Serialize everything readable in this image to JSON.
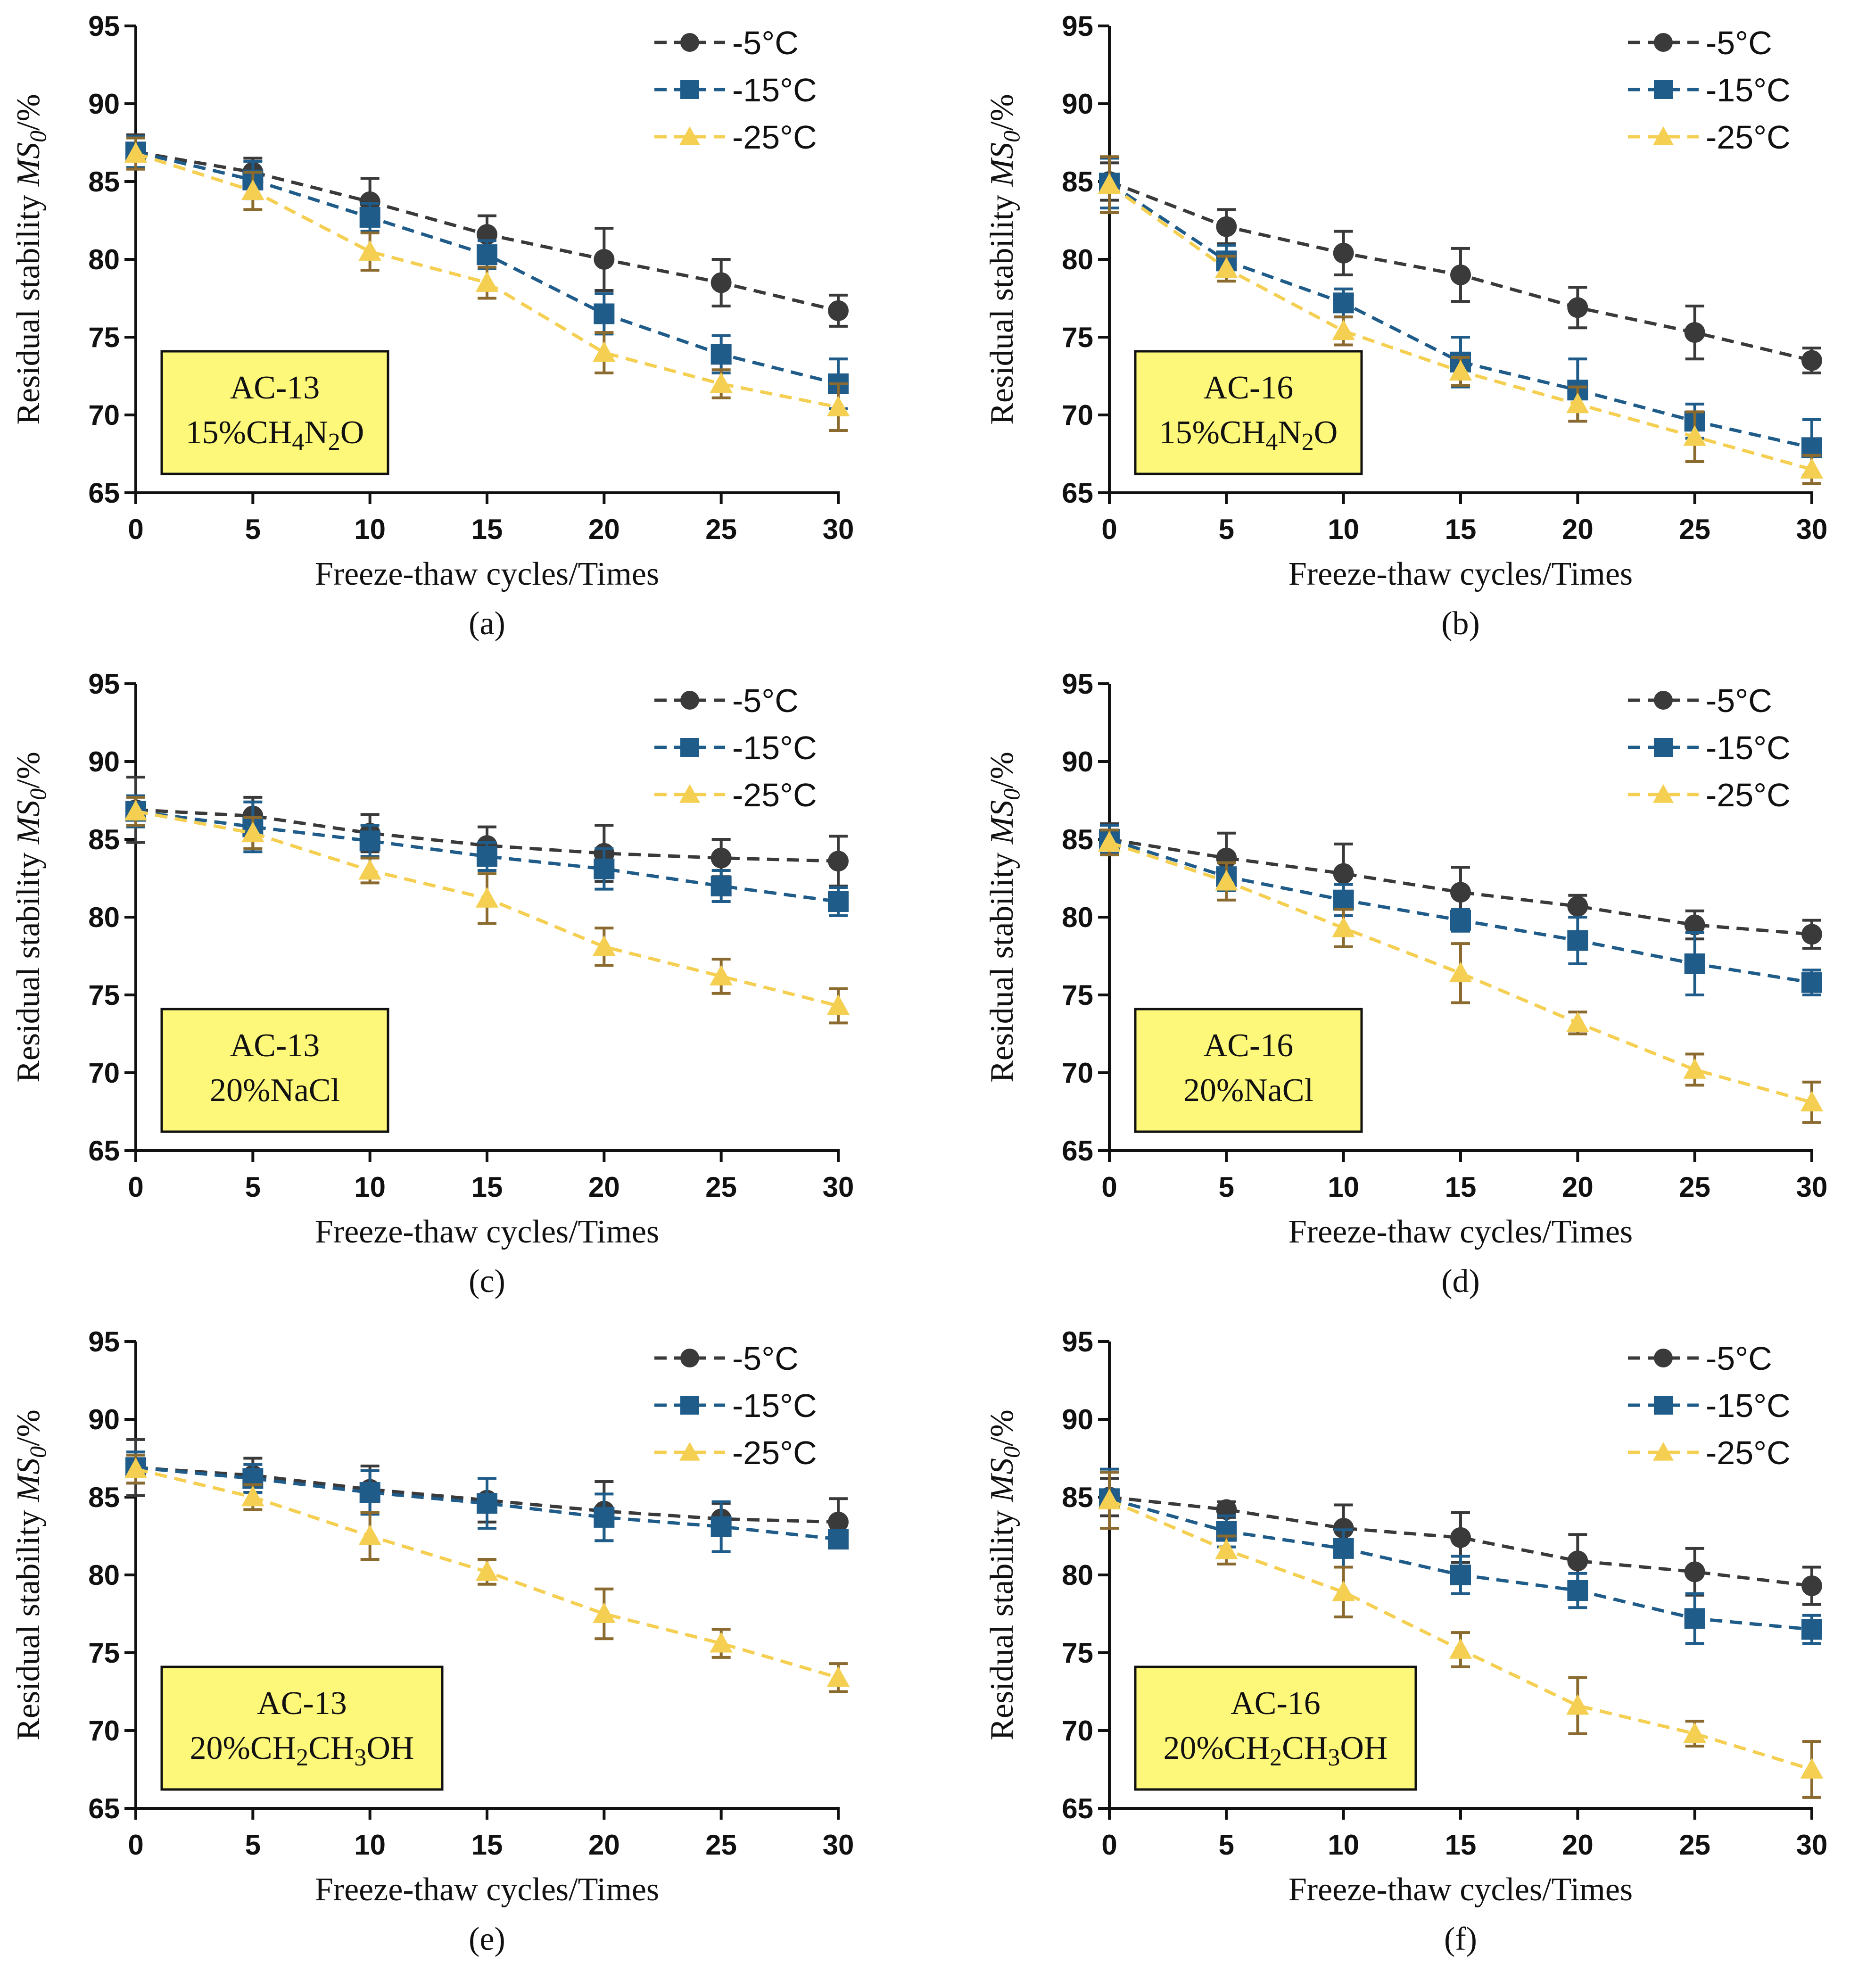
{
  "figure": {
    "series_names": [
      "-5°C",
      "-15°C",
      "-25°C"
    ],
    "series_colors": [
      "#3a3a3a",
      "#1f5c8a",
      "#f5cf52"
    ],
    "errorbar_colors": [
      "#3a3a3a",
      "#1f5c8a",
      "#8a6a2e"
    ],
    "annotation_bg": "#fdf87a"
  },
  "chart_data": [
    {
      "type": "line",
      "panel_label": "(a)",
      "xlabel": "Freeze-thaw cycles/Times",
      "ylabel": {
        "pre": "Residual stability ",
        "italic": "MS",
        "sub": "0",
        "post": "/%"
      },
      "x": [
        0,
        5,
        10,
        15,
        20,
        25,
        30
      ],
      "xlim": [
        0,
        30
      ],
      "ylim": [
        65,
        95
      ],
      "xticks": [
        0,
        5,
        10,
        15,
        20,
        25,
        30
      ],
      "yticks": [
        65,
        70,
        75,
        80,
        85,
        90,
        95
      ],
      "legend": "top-right",
      "annotation": {
        "line1": [
          {
            "t": "AC-13"
          }
        ],
        "line2": [
          {
            "t": "15%CH"
          },
          {
            "t": "4",
            "sub": true
          },
          {
            "t": "N"
          },
          {
            "t": "2",
            "sub": true
          },
          {
            "t": "O"
          }
        ]
      },
      "series": [
        {
          "name": "-5°C",
          "values": [
            86.9,
            85.6,
            83.7,
            81.6,
            80.0,
            78.5,
            76.7
          ],
          "errors": [
            1.1,
            0.9,
            1.5,
            1.2,
            2.0,
            1.5,
            1.0
          ]
        },
        {
          "name": "-15°C",
          "values": [
            86.9,
            85.1,
            82.7,
            80.3,
            76.5,
            73.9,
            72.0
          ],
          "errors": [
            1.0,
            1.2,
            0.9,
            0.9,
            1.3,
            1.2,
            1.6
          ]
        },
        {
          "name": "-25°C",
          "values": [
            86.8,
            84.4,
            80.5,
            78.5,
            74.0,
            72.0,
            70.5
          ],
          "errors": [
            1.0,
            1.2,
            1.2,
            1.0,
            1.3,
            0.9,
            1.5
          ]
        }
      ]
    },
    {
      "type": "line",
      "panel_label": "(b)",
      "xlabel": "Freeze-thaw cycles/Times",
      "ylabel": {
        "pre": "Residual stability ",
        "italic": "MS",
        "sub": "0",
        "post": "/%"
      },
      "x": [
        0,
        5,
        10,
        15,
        20,
        25,
        30
      ],
      "xlim": [
        0,
        30
      ],
      "ylim": [
        65,
        95
      ],
      "xticks": [
        0,
        5,
        10,
        15,
        20,
        25,
        30
      ],
      "yticks": [
        65,
        70,
        75,
        80,
        85,
        90,
        95
      ],
      "legend": "top-right",
      "annotation": {
        "line1": [
          {
            "t": "AC-16"
          }
        ],
        "line2": [
          {
            "t": "15%CH"
          },
          {
            "t": "4",
            "sub": true
          },
          {
            "t": "N"
          },
          {
            "t": "2",
            "sub": true
          },
          {
            "t": "O"
          }
        ]
      },
      "series": [
        {
          "name": "-5°C",
          "values": [
            85.0,
            82.1,
            80.4,
            79.0,
            76.9,
            75.3,
            73.5
          ],
          "errors": [
            1.2,
            1.1,
            1.4,
            1.7,
            1.3,
            1.7,
            0.8
          ]
        },
        {
          "name": "-15°C",
          "values": [
            84.9,
            79.9,
            77.2,
            73.4,
            71.6,
            69.6,
            67.9
          ],
          "errors": [
            1.6,
            1.0,
            0.9,
            1.6,
            2.0,
            1.1,
            1.8
          ]
        },
        {
          "name": "-25°C",
          "values": [
            84.8,
            79.4,
            75.4,
            72.8,
            70.7,
            68.6,
            66.5
          ],
          "errors": [
            1.8,
            0.8,
            0.9,
            0.9,
            1.1,
            1.6,
            0.9
          ]
        }
      ]
    },
    {
      "type": "line",
      "panel_label": "(c)",
      "xlabel": "Freeze-thaw cycles/Times",
      "ylabel": {
        "pre": "Residual stability ",
        "italic": "MS",
        "sub": "0",
        "post": "/%"
      },
      "x": [
        0,
        5,
        10,
        15,
        20,
        25,
        30
      ],
      "xlim": [
        0,
        30
      ],
      "ylim": [
        65,
        95
      ],
      "xticks": [
        0,
        5,
        10,
        15,
        20,
        25,
        30
      ],
      "yticks": [
        65,
        70,
        75,
        80,
        85,
        90,
        95
      ],
      "legend": "top-right",
      "annotation": {
        "line1": [
          {
            "t": "AC-13"
          }
        ],
        "line2": [
          {
            "t": "20%NaCl"
          }
        ]
      },
      "series": [
        {
          "name": "-5°C",
          "values": [
            86.9,
            86.5,
            85.4,
            84.6,
            84.1,
            83.8,
            83.6
          ],
          "errors": [
            2.1,
            1.2,
            1.2,
            1.2,
            1.8,
            1.2,
            1.6
          ]
        },
        {
          "name": "-15°C",
          "values": [
            86.8,
            85.8,
            84.9,
            83.9,
            83.1,
            82.0,
            81.0
          ],
          "errors": [
            1.0,
            1.6,
            1.0,
            0.9,
            1.3,
            1.0,
            0.9
          ]
        },
        {
          "name": "-25°C",
          "values": [
            86.8,
            85.4,
            83.0,
            81.2,
            78.1,
            76.2,
            74.3
          ],
          "errors": [
            0.9,
            1.0,
            0.8,
            1.6,
            1.2,
            1.1,
            1.1
          ]
        }
      ]
    },
    {
      "type": "line",
      "panel_label": "(d)",
      "xlabel": "Freeze-thaw cycles/Times",
      "ylabel": {
        "pre": "Residual stability ",
        "italic": "MS",
        "sub": "0",
        "post": "/%"
      },
      "x": [
        0,
        5,
        10,
        15,
        20,
        25,
        30
      ],
      "xlim": [
        0,
        30
      ],
      "ylim": [
        65,
        95
      ],
      "xticks": [
        0,
        5,
        10,
        15,
        20,
        25,
        30
      ],
      "yticks": [
        65,
        70,
        75,
        80,
        85,
        90,
        95
      ],
      "legend": "top-right",
      "annotation": {
        "line1": [
          {
            "t": "AC-16"
          }
        ],
        "line2": [
          {
            "t": "20%NaCl"
          }
        ]
      },
      "series": [
        {
          "name": "-5°C",
          "values": [
            85.0,
            83.8,
            82.8,
            81.6,
            80.7,
            79.5,
            78.9
          ],
          "errors": [
            1.0,
            1.6,
            1.9,
            1.6,
            0.7,
            0.9,
            0.9
          ]
        },
        {
          "name": "-15°C",
          "values": [
            85.0,
            82.6,
            81.1,
            79.8,
            78.5,
            77.0,
            75.8
          ],
          "errors": [
            0.9,
            0.9,
            1.0,
            0.7,
            1.5,
            2.0,
            0.8
          ]
        },
        {
          "name": "-25°C",
          "values": [
            84.8,
            82.3,
            79.3,
            76.4,
            73.2,
            70.2,
            68.1
          ],
          "errors": [
            0.8,
            1.2,
            1.2,
            1.9,
            0.7,
            1.0,
            1.3
          ]
        }
      ]
    },
    {
      "type": "line",
      "panel_label": "(e)",
      "xlabel": "Freeze-thaw cycles/Times",
      "ylabel": {
        "pre": "Residual stability ",
        "italic": "MS",
        "sub": "0",
        "post": "/%"
      },
      "x": [
        0,
        5,
        10,
        15,
        20,
        25,
        30
      ],
      "xlim": [
        0,
        30
      ],
      "ylim": [
        65,
        95
      ],
      "xticks": [
        0,
        5,
        10,
        15,
        20,
        25,
        30
      ],
      "yticks": [
        65,
        70,
        75,
        80,
        85,
        90,
        95
      ],
      "legend": "top-right",
      "annotation": {
        "line1": [
          {
            "t": "AC-13"
          }
        ],
        "line2": [
          {
            "t": "20%CH"
          },
          {
            "t": "2",
            "sub": true
          },
          {
            "t": "CH"
          },
          {
            "t": "3",
            "sub": true
          },
          {
            "t": "OH"
          }
        ]
      },
      "series": [
        {
          "name": "-5°C",
          "values": [
            86.9,
            86.4,
            85.5,
            84.8,
            84.1,
            83.6,
            83.4
          ],
          "errors": [
            1.8,
            1.1,
            1.5,
            1.4,
            1.9,
            1.0,
            1.5
          ]
        },
        {
          "name": "-15°C",
          "values": [
            86.9,
            86.2,
            85.3,
            84.6,
            83.7,
            83.1,
            82.3
          ],
          "errors": [
            1.0,
            0.9,
            1.4,
            1.6,
            1.5,
            1.6,
            0.5
          ]
        },
        {
          "name": "-25°C",
          "values": [
            86.8,
            85.0,
            82.5,
            80.2,
            77.5,
            75.6,
            73.4
          ],
          "errors": [
            0.9,
            0.8,
            1.5,
            0.8,
            1.6,
            0.9,
            0.9
          ]
        }
      ]
    },
    {
      "type": "line",
      "panel_label": "(f)",
      "xlabel": "Freeze-thaw cycles/Times",
      "ylabel": {
        "pre": "Residual stability ",
        "italic": "MS",
        "sub": "0",
        "post": "/%"
      },
      "x": [
        0,
        5,
        10,
        15,
        20,
        25,
        30
      ],
      "xlim": [
        0,
        30
      ],
      "ylim": [
        65,
        95
      ],
      "xticks": [
        0,
        5,
        10,
        15,
        20,
        25,
        30
      ],
      "yticks": [
        65,
        70,
        75,
        80,
        85,
        90,
        95
      ],
      "legend": "top-right",
      "annotation": {
        "line1": [
          {
            "t": "AC-16"
          }
        ],
        "line2": [
          {
            "t": "20%CH"
          },
          {
            "t": "2",
            "sub": true
          },
          {
            "t": "CH"
          },
          {
            "t": "3",
            "sub": true
          },
          {
            "t": "OH"
          }
        ]
      },
      "series": [
        {
          "name": "-5°C",
          "values": [
            85.0,
            84.2,
            83.0,
            82.4,
            80.9,
            80.2,
            79.3
          ],
          "errors": [
            1.2,
            0.5,
            1.5,
            1.6,
            1.7,
            1.5,
            1.2
          ]
        },
        {
          "name": "-15°C",
          "values": [
            84.9,
            82.8,
            81.7,
            80.0,
            79.0,
            77.2,
            76.5
          ],
          "errors": [
            1.9,
            1.0,
            1.2,
            1.2,
            1.1,
            1.6,
            0.9
          ]
        },
        {
          "name": "-25°C",
          "values": [
            84.8,
            81.6,
            78.9,
            75.2,
            71.6,
            69.8,
            67.5
          ],
          "errors": [
            1.8,
            0.9,
            1.6,
            1.1,
            1.8,
            0.8,
            1.8
          ]
        }
      ]
    }
  ]
}
